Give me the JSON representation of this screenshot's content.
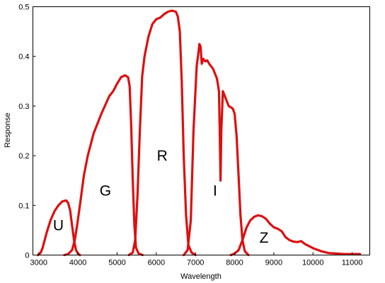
{
  "chart_data": {
    "type": "line",
    "title": "",
    "xlabel": "Wavelength",
    "ylabel": "Response",
    "xlim": [
      2850,
      11450
    ],
    "ylim": [
      0,
      0.5
    ],
    "x_ticks": [
      3000,
      4000,
      5000,
      6000,
      7000,
      8000,
      9000,
      10000,
      11000
    ],
    "y_ticks": [
      0,
      0.1,
      0.2,
      0.3,
      0.4,
      0.5
    ],
    "x_tick_labels": [
      "3000",
      "4000",
      "5000",
      "6000",
      "7000",
      "8000",
      "9000",
      "10000",
      "11000"
    ],
    "y_tick_labels": [
      "0",
      "0.1",
      "0.2",
      "0.3",
      "0.4",
      "0.5"
    ],
    "grid": false,
    "legend": "none",
    "line_color": "#dd0f0f",
    "series": [
      {
        "label": "U",
        "label_pos": [
          3500,
          0.05
        ],
        "points": [
          [
            2980,
            0
          ],
          [
            3050,
            0.005
          ],
          [
            3100,
            0.015
          ],
          [
            3200,
            0.045
          ],
          [
            3300,
            0.07
          ],
          [
            3400,
            0.088
          ],
          [
            3500,
            0.1
          ],
          [
            3600,
            0.108
          ],
          [
            3700,
            0.11
          ],
          [
            3750,
            0.105
          ],
          [
            3800,
            0.09
          ],
          [
            3850,
            0.06
          ],
          [
            3900,
            0.03
          ],
          [
            3950,
            0.01
          ],
          [
            4000,
            0.003
          ],
          [
            4050,
            0
          ]
        ]
      },
      {
        "label": "G",
        "label_pos": [
          4700,
          0.12
        ],
        "points": [
          [
            3650,
            0
          ],
          [
            3750,
            0.002
          ],
          [
            3850,
            0.01
          ],
          [
            3920,
            0.03
          ],
          [
            3980,
            0.06
          ],
          [
            4050,
            0.1
          ],
          [
            4150,
            0.16
          ],
          [
            4250,
            0.2
          ],
          [
            4400,
            0.245
          ],
          [
            4600,
            0.285
          ],
          [
            4800,
            0.32
          ],
          [
            4900,
            0.33
          ],
          [
            5000,
            0.345
          ],
          [
            5100,
            0.358
          ],
          [
            5200,
            0.362
          ],
          [
            5280,
            0.358
          ],
          [
            5320,
            0.34
          ],
          [
            5360,
            0.26
          ],
          [
            5400,
            0.15
          ],
          [
            5440,
            0.06
          ],
          [
            5480,
            0.015
          ],
          [
            5550,
            0.003
          ],
          [
            5650,
            0
          ]
        ]
      },
      {
        "label": "R",
        "label_pos": [
          6150,
          0.19
        ],
        "points": [
          [
            5300,
            0
          ],
          [
            5400,
            0.005
          ],
          [
            5460,
            0.03
          ],
          [
            5520,
            0.12
          ],
          [
            5580,
            0.25
          ],
          [
            5640,
            0.36
          ],
          [
            5700,
            0.4
          ],
          [
            5800,
            0.44
          ],
          [
            5900,
            0.465
          ],
          [
            6000,
            0.475
          ],
          [
            6100,
            0.478
          ],
          [
            6200,
            0.485
          ],
          [
            6300,
            0.49
          ],
          [
            6400,
            0.492
          ],
          [
            6500,
            0.49
          ],
          [
            6550,
            0.48
          ],
          [
            6600,
            0.45
          ],
          [
            6650,
            0.35
          ],
          [
            6700,
            0.2
          ],
          [
            6760,
            0.08
          ],
          [
            6820,
            0.02
          ],
          [
            6900,
            0.005
          ],
          [
            7000,
            0
          ]
        ]
      },
      {
        "label": "I",
        "label_pos": [
          7500,
          0.12
        ],
        "points": [
          [
            6700,
            0
          ],
          [
            6800,
            0.01
          ],
          [
            6880,
            0.07
          ],
          [
            6950,
            0.25
          ],
          [
            7030,
            0.38
          ],
          [
            7080,
            0.41
          ],
          [
            7100,
            0.425
          ],
          [
            7130,
            0.42
          ],
          [
            7160,
            0.385
          ],
          [
            7200,
            0.395
          ],
          [
            7250,
            0.39
          ],
          [
            7300,
            0.392
          ],
          [
            7350,
            0.385
          ],
          [
            7450,
            0.375
          ],
          [
            7550,
            0.355
          ],
          [
            7600,
            0.33
          ],
          [
            7620,
            0.25
          ],
          [
            7640,
            0.15
          ],
          [
            7660,
            0.25
          ],
          [
            7700,
            0.33
          ],
          [
            7750,
            0.32
          ],
          [
            7850,
            0.3
          ],
          [
            7950,
            0.295
          ],
          [
            8000,
            0.285
          ],
          [
            8050,
            0.24
          ],
          [
            8100,
            0.16
          ],
          [
            8150,
            0.08
          ],
          [
            8200,
            0.03
          ],
          [
            8260,
            0.008
          ],
          [
            8350,
            0
          ]
        ]
      },
      {
        "label": "Z",
        "label_pos": [
          8750,
          0.025
        ],
        "points": [
          [
            7900,
            0
          ],
          [
            8000,
            0.003
          ],
          [
            8100,
            0.01
          ],
          [
            8200,
            0.03
          ],
          [
            8300,
            0.055
          ],
          [
            8400,
            0.07
          ],
          [
            8500,
            0.077
          ],
          [
            8600,
            0.08
          ],
          [
            8700,
            0.078
          ],
          [
            8800,
            0.073
          ],
          [
            8900,
            0.063
          ],
          [
            9000,
            0.056
          ],
          [
            9100,
            0.053
          ],
          [
            9200,
            0.048
          ],
          [
            9300,
            0.036
          ],
          [
            9400,
            0.03
          ],
          [
            9500,
            0.027
          ],
          [
            9600,
            0.026
          ],
          [
            9700,
            0.028
          ],
          [
            9800,
            0.022
          ],
          [
            10000,
            0.014
          ],
          [
            10200,
            0.008
          ],
          [
            10400,
            0.004
          ],
          [
            10600,
            0.003
          ],
          [
            10800,
            0.002
          ],
          [
            11000,
            0.002
          ],
          [
            11200,
            0.002
          ]
        ]
      }
    ]
  }
}
